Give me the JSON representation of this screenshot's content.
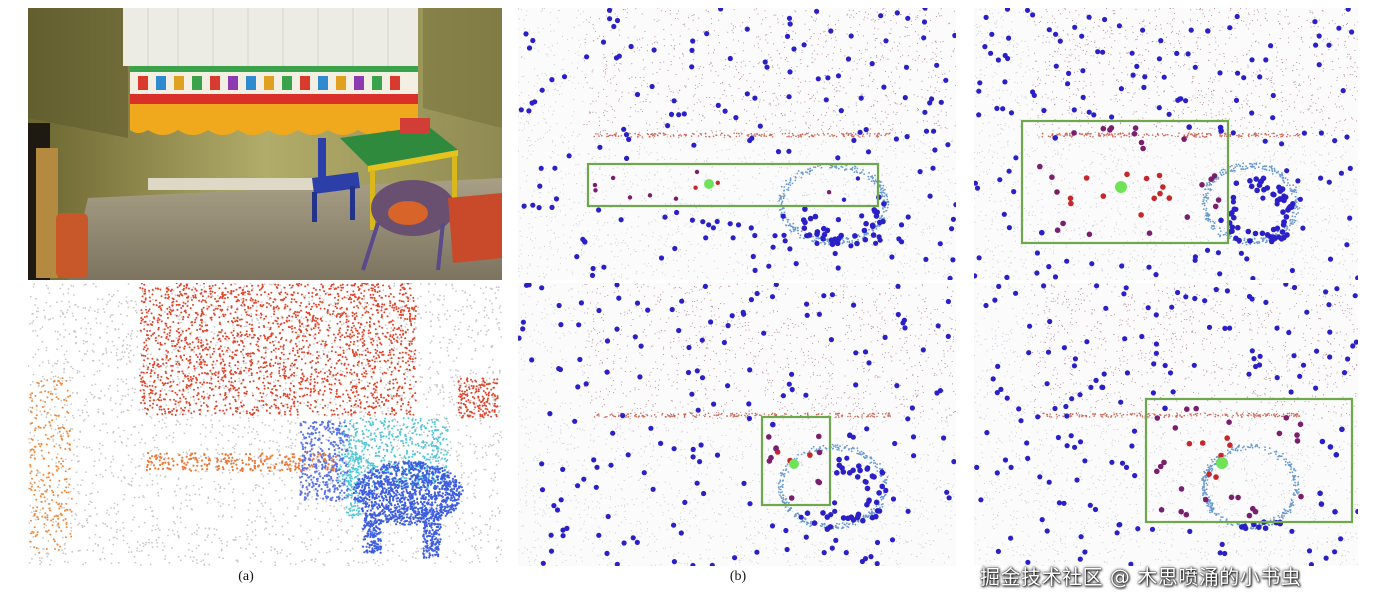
{
  "figure": {
    "label_a": "(a)",
    "label_b": "(b)"
  },
  "watermark": "掘金技术社区 @ 木思喷涌的小书虫",
  "colors": {
    "box": "#6ea84a",
    "seed": "#6fe25a",
    "near": "#c8262b",
    "mid": "#7a1f6e",
    "far": "#2b1fc7"
  }
}
